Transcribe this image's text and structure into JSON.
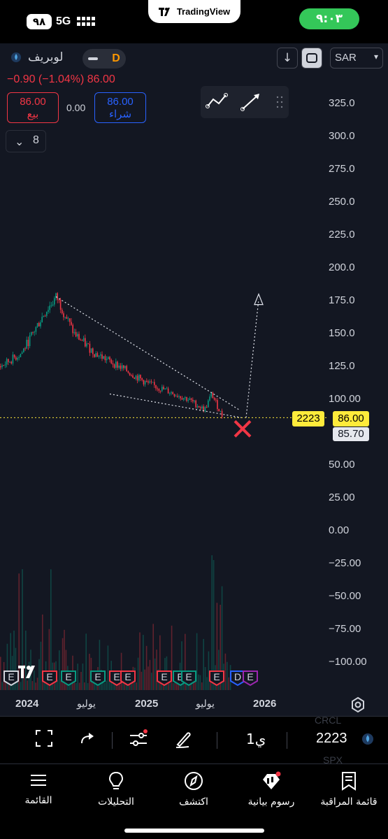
{
  "status_bar": {
    "battery": "٩٨",
    "network": "5G",
    "app_pill": "TradingView",
    "time": "٩:٠٣"
  },
  "symbol": {
    "name": "لوبريف",
    "interval_letter": "D",
    "change": "−0.90 (−1.04%) 86.00",
    "sell_price": "86.00",
    "sell_label": "بيع",
    "buy_price": "86.00",
    "buy_label": "شراء",
    "spread": "0.00",
    "interval_count": "8",
    "currency": "SAR"
  },
  "price_axis": {
    "labels": [
      "325.0",
      "300.0",
      "275.0",
      "250.0",
      "225.0",
      "200.0",
      "175.0",
      "150.0",
      "125.0",
      "100.00",
      "50.00",
      "25.00",
      "0.00",
      "−25.00",
      "−50.00",
      "−75.00",
      "−100.00"
    ],
    "current_price": "86.00",
    "symbol_tag": "2223",
    "bid_price": "85.70"
  },
  "time_axis": {
    "labels": [
      "2024",
      "يوليو",
      "2025",
      "يوليو",
      "2026"
    ]
  },
  "chart_data": {
    "type": "candlestick",
    "currency": "SAR",
    "ylim": [
      -110,
      335
    ],
    "x": [
      "2023-11",
      "2024-01",
      "2024-03",
      "2024-05",
      "2024-07",
      "2024-09",
      "2024-11",
      "2025-01",
      "2025-03",
      "2025-05",
      "2025-07",
      "2025-08",
      "2025-09"
    ],
    "close": [
      125,
      135,
      165,
      178,
      150,
      135,
      125,
      112,
      106,
      100,
      92,
      104,
      86
    ],
    "last_price": 86.0,
    "earnings_markers": 10,
    "annotations": [
      "descending wedge",
      "projected breakout arrow to ~175",
      "red X at breakdown"
    ]
  },
  "toolbar": {
    "interval": "1ي",
    "symbol": "2223",
    "ghost_top": "CRCL",
    "ghost_bottom": "SPX"
  },
  "bottom_nav": {
    "items": [
      {
        "label": "القائمة"
      },
      {
        "label": "التحليلات"
      },
      {
        "label": "اكتشف"
      },
      {
        "label": "رسوم بيانية"
      },
      {
        "label": "قائمة المراقبة"
      }
    ]
  }
}
